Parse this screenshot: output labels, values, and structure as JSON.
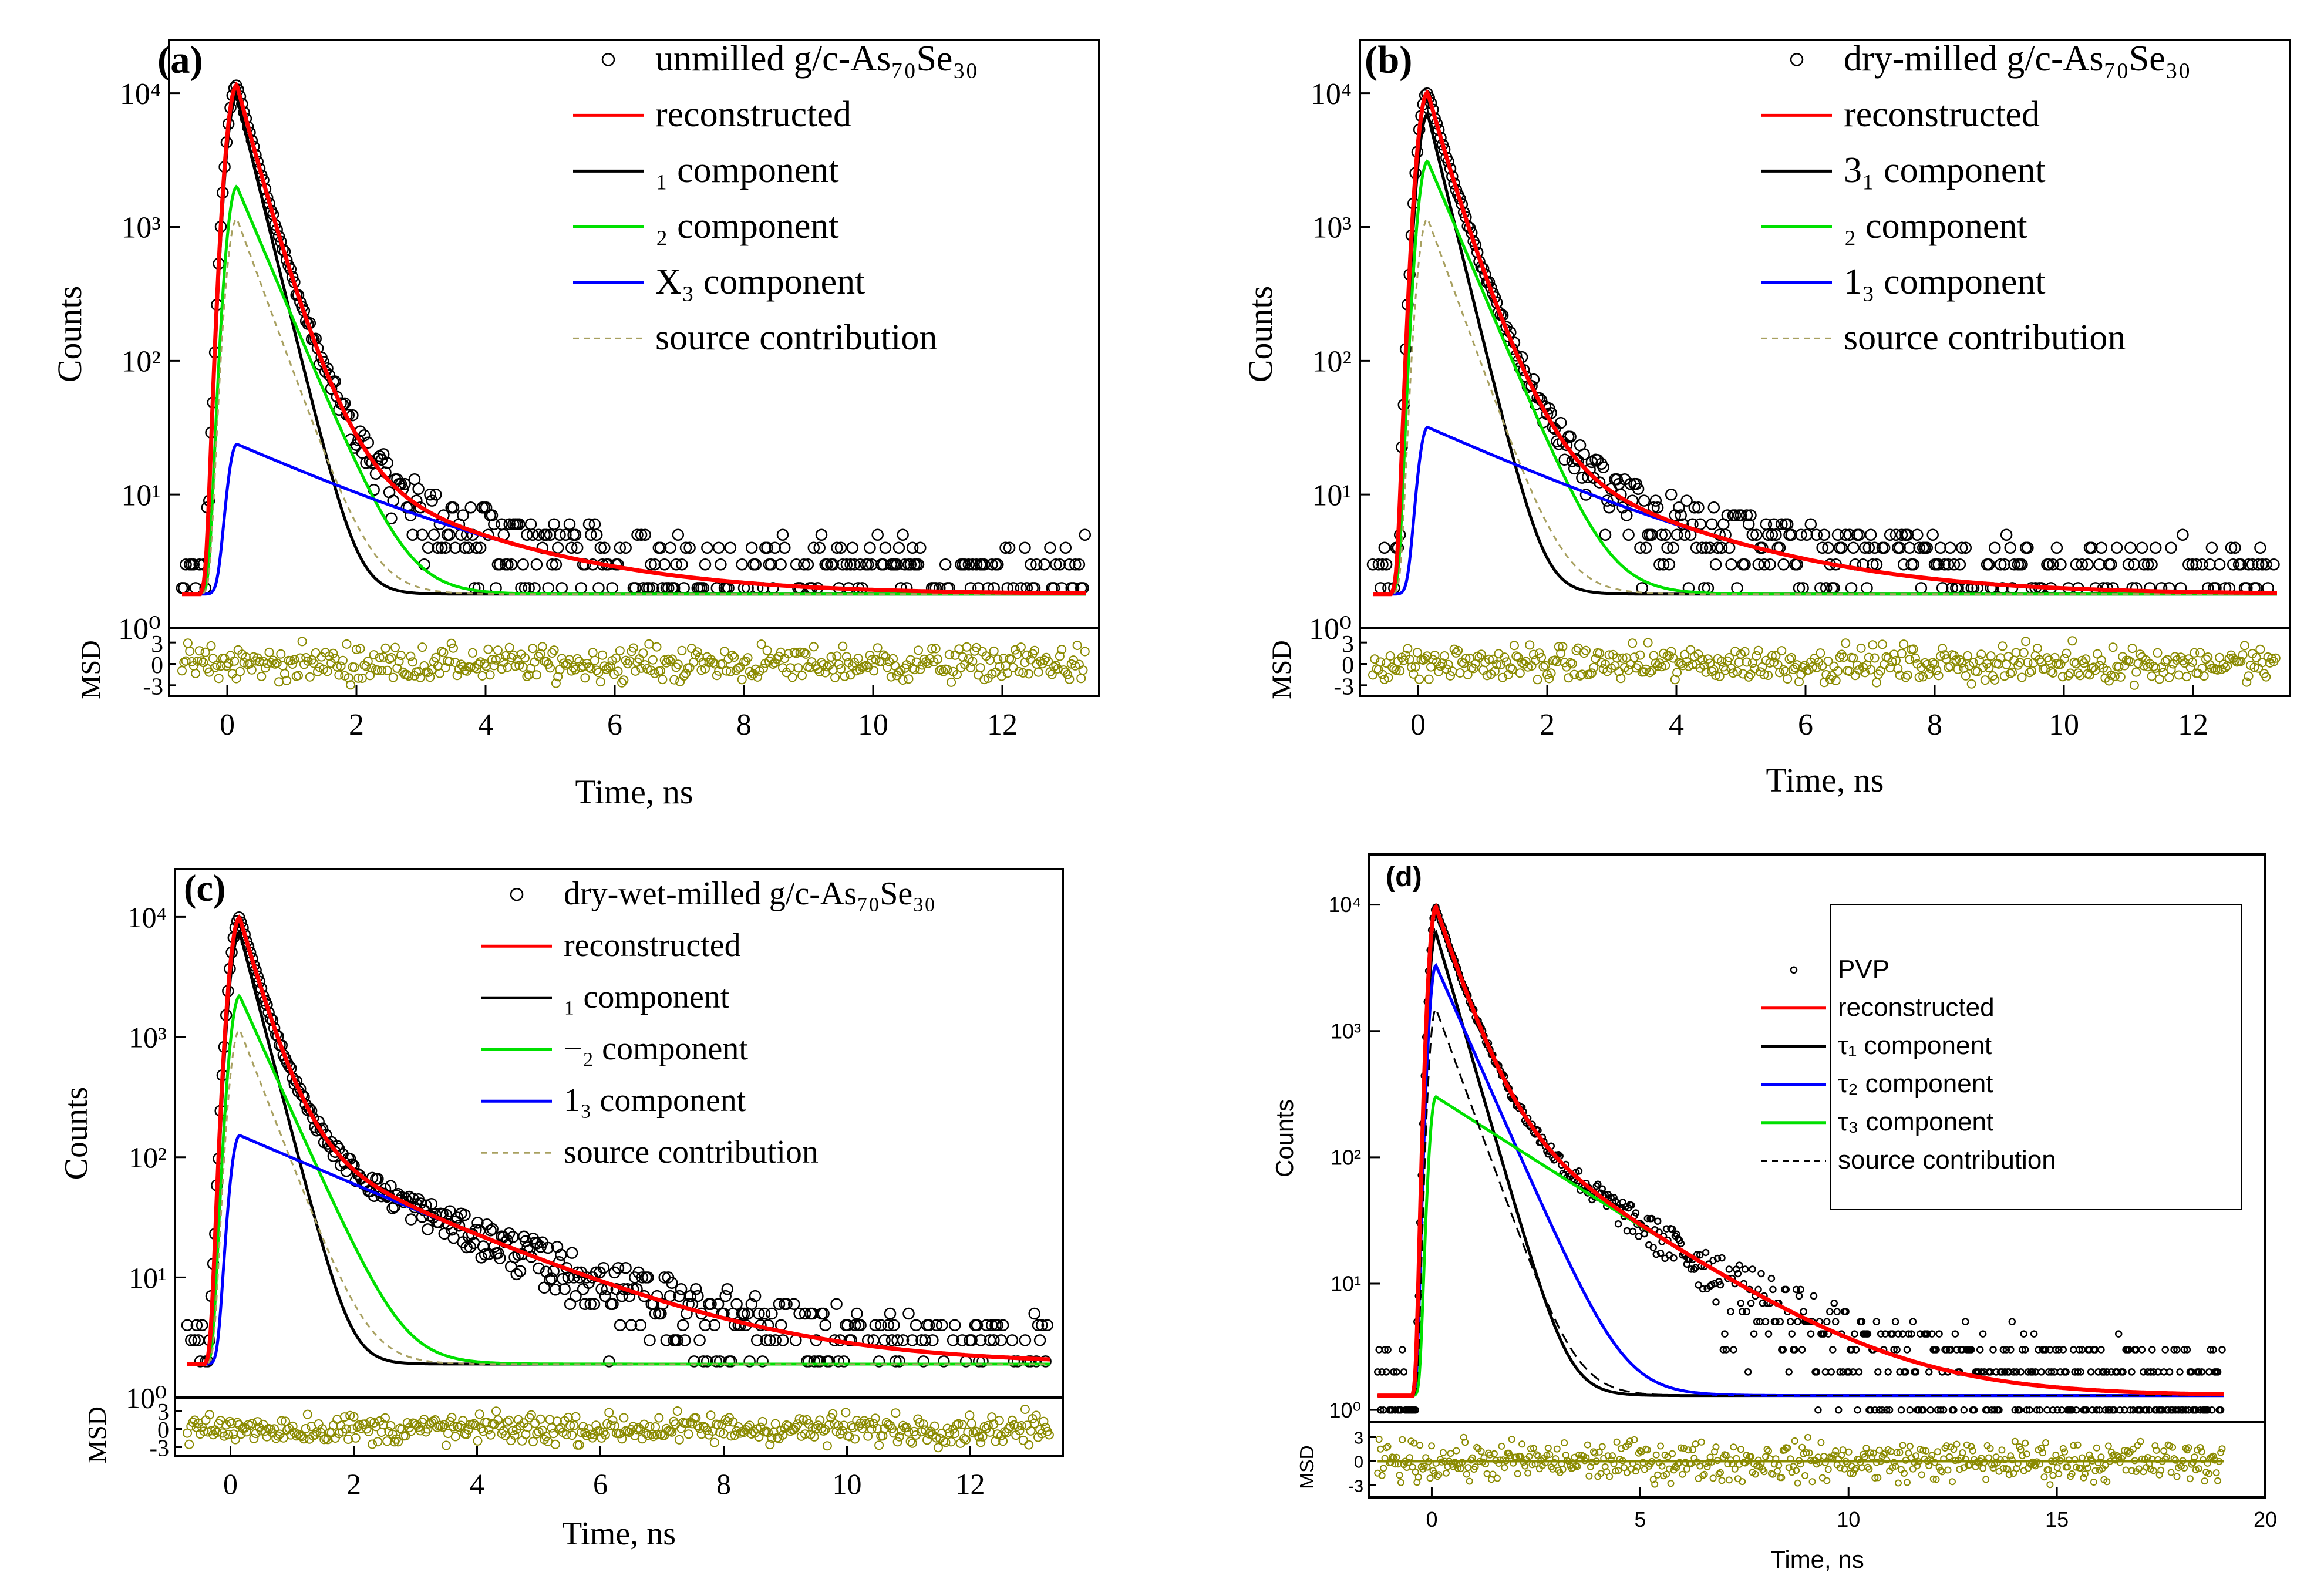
{
  "figure_title": "",
  "colors": {
    "reconstructed": "#ff0000",
    "black_component": "#000000",
    "green_component": "#00e000",
    "blue_component": "#0000ff",
    "source_dashed_olive": "#a8a060",
    "source_dashed_black": "#000000",
    "msd_points": "#8a8a00",
    "data_points": "#000000"
  },
  "chart_data": [
    {
      "type": "line",
      "panel": "(a)",
      "title": "",
      "xlabel": "Time, ns",
      "ylabel": "Counts",
      "residual_label": "MSD",
      "xlim": [
        -0.9,
        13.5
      ],
      "ylim": [
        1,
        25000
      ],
      "yscale": "log",
      "xticks": [
        0,
        2,
        4,
        6,
        8,
        10,
        12
      ],
      "yticks": [
        1,
        10,
        100,
        1000,
        10000
      ],
      "ytick_labels": [
        "10⁰",
        "10¹",
        "10²",
        "10³",
        "10⁴"
      ],
      "residual_ylim": [
        -4.5,
        4.5
      ],
      "residual_ticks": [
        3,
        0,
        -3
      ],
      "residual_tick_labels": [
        "3",
        "0",
        "-3"
      ],
      "legend_position": "top-right",
      "legend": {
        "data_label": "unmilled g/c-As₇₀Se₃₀",
        "reconstructed": "reconstructed",
        "comp1": "₁ component",
        "comp2": "₂ component",
        "comp3": "X₃ component",
        "source": "source contribution"
      },
      "peak_time": 0.15,
      "peak_counts": 10500,
      "background": 1.8,
      "series": [
        {
          "name": "comp1",
          "color": "black",
          "amplitude": 9500,
          "tau": 0.22
        },
        {
          "name": "comp2",
          "color": "green",
          "amplitude": 2000,
          "tau": 0.38
        },
        {
          "name": "comp3",
          "color": "blue",
          "amplitude": 22,
          "tau": 1.95
        },
        {
          "name": "source",
          "color": "olive-dashed",
          "amplitude": 1150,
          "tau": 0.33
        }
      ]
    },
    {
      "type": "line",
      "panel": "(b)",
      "title": "",
      "xlabel": "Time, ns",
      "ylabel": "Counts",
      "residual_label": "MSD",
      "xlim": [
        -0.9,
        13.5
      ],
      "ylim": [
        1,
        25000
      ],
      "yscale": "log",
      "xticks": [
        0,
        2,
        4,
        6,
        8,
        10,
        12
      ],
      "yticks": [
        1,
        10,
        100,
        1000,
        10000
      ],
      "ytick_labels": [
        "10⁰",
        "10¹",
        "10²",
        "10³",
        "10⁴"
      ],
      "residual_ylim": [
        -4.5,
        4.5
      ],
      "residual_ticks": [
        3,
        0,
        -3
      ],
      "residual_tick_labels": [
        "3",
        "0",
        "-3"
      ],
      "legend_position": "top-right",
      "legend": {
        "data_label": "dry-milled g/c-As₇₀Se₃₀",
        "reconstructed": "reconstructed",
        "comp1": "3₁ component",
        "comp2": "₂ component",
        "comp3": "1₃ component",
        "source": "source contribution"
      },
      "peak_time": 0.15,
      "peak_counts": 10800,
      "background": 1.8,
      "series": [
        {
          "name": "comp1",
          "color": "black",
          "amplitude": 7000,
          "tau": 0.22
        },
        {
          "name": "comp2",
          "color": "green",
          "amplitude": 3100,
          "tau": 0.38
        },
        {
          "name": "comp3",
          "color": "blue",
          "amplitude": 30,
          "tau": 1.95
        },
        {
          "name": "source",
          "color": "olive-dashed",
          "amplitude": 1150,
          "tau": 0.33
        }
      ]
    },
    {
      "type": "line",
      "panel": "(c)",
      "title": "",
      "xlabel": "Time, ns",
      "ylabel": "Counts",
      "residual_label": "MSD",
      "xlim": [
        -0.9,
        13.5
      ],
      "ylim": [
        1,
        25000
      ],
      "yscale": "log",
      "xticks": [
        0,
        2,
        4,
        6,
        8,
        10,
        12
      ],
      "yticks": [
        1,
        10,
        100,
        1000,
        10000
      ],
      "ytick_labels": [
        "10⁰",
        "10¹",
        "10²",
        "10³",
        "10⁴"
      ],
      "residual_ylim": [
        -4.5,
        4.5
      ],
      "residual_ticks": [
        3,
        0,
        -3
      ],
      "residual_tick_labels": [
        "3",
        "0",
        "-3"
      ],
      "legend_position": "top-right",
      "legend": {
        "data_label": "dry-wet-milled g/c-As₇₀Se₃₀",
        "reconstructed": "reconstructed",
        "comp1": "₁ component",
        "comp2": "−₂ component",
        "comp3": "1₃ component",
        "source": "source contribution"
      },
      "peak_time": 0.15,
      "peak_counts": 10800,
      "background": 1.9,
      "series": [
        {
          "name": "comp1",
          "color": "black",
          "amplitude": 7500,
          "tau": 0.22
        },
        {
          "name": "comp2",
          "color": "green",
          "amplitude": 2200,
          "tau": 0.38
        },
        {
          "name": "comp3",
          "color": "blue",
          "amplitude": 150,
          "tau": 1.95
        },
        {
          "name": "source",
          "color": "olive-dashed",
          "amplitude": 1150,
          "tau": 0.33
        }
      ]
    },
    {
      "type": "line",
      "panel": "(d)",
      "title": "",
      "xlabel": "Time, ns",
      "ylabel": "Counts",
      "residual_label": "MSD",
      "xlim": [
        -1.5,
        20
      ],
      "ylim": [
        0.8,
        25000
      ],
      "yscale": "log",
      "xticks": [
        0,
        5,
        10,
        15,
        20
      ],
      "yticks": [
        1,
        10,
        100,
        1000,
        10000
      ],
      "ytick_labels": [
        "10⁰",
        "10¹",
        "10²",
        "10³",
        "10⁴"
      ],
      "residual_ylim": [
        -4.5,
        4.5
      ],
      "residual_ticks": [
        3,
        0,
        -3
      ],
      "residual_tick_labels": [
        "3",
        "0",
        "-3"
      ],
      "legend_position": "top-right",
      "legend": {
        "data_label": "PVP",
        "reconstructed": "reconstructed",
        "comp1": "τ₁ component",
        "comp2": "τ₂ component",
        "comp3": "τ₃ component",
        "source": "source contribution"
      },
      "peak_time": 0.1,
      "peak_counts": 11000,
      "background": 1.3,
      "series": [
        {
          "name": "comp1",
          "color": "black",
          "amplitude": 6000,
          "tau": 0.38
        },
        {
          "name": "comp2",
          "color": "blue",
          "amplitude": 3300,
          "tau": 0.58
        },
        {
          "name": "comp3",
          "color": "green",
          "amplitude": 300,
          "tau": 2.05
        },
        {
          "name": "source",
          "color": "black-dashed",
          "amplitude": 1500,
          "tau": 0.48
        }
      ]
    }
  ]
}
